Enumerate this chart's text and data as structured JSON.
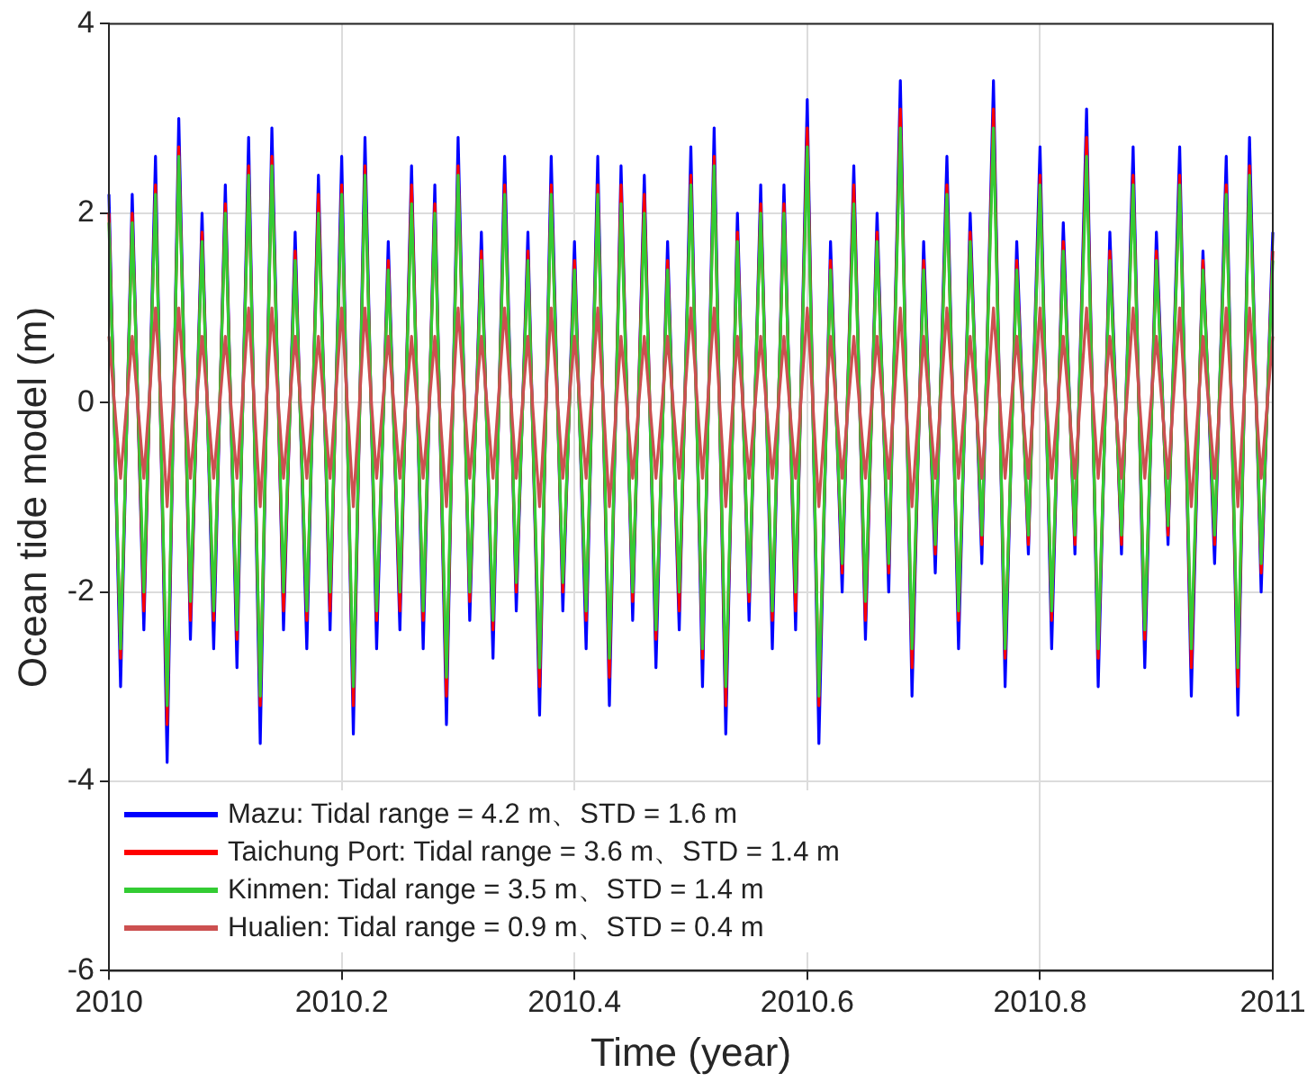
{
  "chart_data": {
    "type": "line",
    "xlabel": "Time (year)",
    "ylabel": "Ocean tide model (m)",
    "x": [
      2010.0,
      2010.01,
      2010.02,
      2010.03,
      2010.04,
      2010.05,
      2010.06,
      2010.07,
      2010.08,
      2010.09,
      2010.1,
      2010.11,
      2010.12,
      2010.13,
      2010.14,
      2010.15,
      2010.16,
      2010.17,
      2010.18,
      2010.19,
      2010.2,
      2010.21,
      2010.22,
      2010.23,
      2010.24,
      2010.25,
      2010.26,
      2010.27,
      2010.28,
      2010.29,
      2010.3,
      2010.31,
      2010.32,
      2010.33,
      2010.34,
      2010.35,
      2010.36,
      2010.37,
      2010.38,
      2010.39,
      2010.4,
      2010.41,
      2010.42,
      2010.43,
      2010.44,
      2010.45,
      2010.46,
      2010.47,
      2010.48,
      2010.49,
      2010.5,
      2010.51,
      2010.52,
      2010.53,
      2010.54,
      2010.55,
      2010.56,
      2010.57,
      2010.58,
      2010.59,
      2010.6,
      2010.61,
      2010.62,
      2010.63,
      2010.64,
      2010.65,
      2010.66,
      2010.67,
      2010.68,
      2010.69,
      2010.7,
      2010.71,
      2010.72,
      2010.73,
      2010.74,
      2010.75,
      2010.76,
      2010.77,
      2010.78,
      2010.79,
      2010.8,
      2010.81,
      2010.82,
      2010.83,
      2010.84,
      2010.85,
      2010.86,
      2010.87,
      2010.88,
      2010.89,
      2010.9,
      2010.91,
      2010.92,
      2010.93,
      2010.94,
      2010.95,
      2010.96,
      2010.97,
      2010.98,
      2010.99,
      2011.0
    ],
    "series": [
      {
        "name": "Mazu: Tidal range = 4.2 m、STD = 1.6 m",
        "color": "#0000ff",
        "values": [
          2.2,
          -3.0,
          2.2,
          -2.4,
          2.6,
          -3.8,
          3.0,
          -2.5,
          2.0,
          -2.6,
          2.3,
          -2.8,
          2.8,
          -3.6,
          2.9,
          -2.4,
          1.8,
          -2.6,
          2.4,
          -2.4,
          2.6,
          -3.5,
          2.8,
          -2.6,
          1.7,
          -2.4,
          2.5,
          -2.6,
          2.3,
          -3.4,
          2.8,
          -2.3,
          1.8,
          -2.7,
          2.6,
          -2.2,
          1.8,
          -3.3,
          2.6,
          -2.2,
          1.7,
          -2.6,
          2.6,
          -3.2,
          2.5,
          -2.3,
          2.4,
          -2.8,
          1.7,
          -2.4,
          2.7,
          -3.0,
          2.9,
          -3.5,
          2.0,
          -2.3,
          2.3,
          -2.6,
          2.3,
          -2.4,
          3.2,
          -3.6,
          1.7,
          -2.0,
          2.5,
          -2.5,
          2.0,
          -2.0,
          3.4,
          -3.1,
          1.7,
          -1.8,
          2.6,
          -2.6,
          2.0,
          -1.7,
          3.4,
          -3.0,
          1.7,
          -1.6,
          2.7,
          -2.6,
          1.9,
          -1.6,
          3.1,
          -3.0,
          1.8,
          -1.6,
          2.7,
          -2.8,
          1.8,
          -1.5,
          2.7,
          -3.1,
          1.6,
          -1.7,
          2.6,
          -3.3,
          2.8,
          -2.0,
          1.8
        ]
      },
      {
        "name": "Taichung Port: Tidal range = 3.6 m、STD = 1.4 m",
        "color": "#ff0000",
        "values": [
          2.0,
          -2.7,
          2.0,
          -2.2,
          2.3,
          -3.4,
          2.7,
          -2.3,
          1.8,
          -2.3,
          2.1,
          -2.5,
          2.5,
          -3.2,
          2.6,
          -2.2,
          1.6,
          -2.3,
          2.2,
          -2.2,
          2.3,
          -3.2,
          2.5,
          -2.3,
          1.5,
          -2.2,
          2.3,
          -2.3,
          2.1,
          -3.1,
          2.5,
          -2.1,
          1.6,
          -2.4,
          2.3,
          -2.0,
          1.6,
          -3.0,
          2.3,
          -2.0,
          1.5,
          -2.3,
          2.3,
          -2.9,
          2.3,
          -2.1,
          2.2,
          -2.5,
          1.5,
          -2.2,
          2.4,
          -2.7,
          2.6,
          -3.2,
          1.8,
          -2.1,
          2.1,
          -2.3,
          2.1,
          -2.2,
          2.9,
          -3.2,
          1.5,
          -1.8,
          2.3,
          -2.3,
          1.8,
          -1.8,
          3.1,
          -2.8,
          1.5,
          -1.6,
          2.3,
          -2.3,
          1.8,
          -1.5,
          3.1,
          -2.7,
          1.5,
          -1.5,
          2.4,
          -2.3,
          1.7,
          -1.5,
          2.8,
          -2.7,
          1.6,
          -1.5,
          2.4,
          -2.5,
          1.6,
          -1.4,
          2.4,
          -2.8,
          1.5,
          -1.5,
          2.3,
          -3.0,
          2.5,
          -1.8,
          1.6
        ]
      },
      {
        "name": "Kinmen: Tidal range = 3.5 m、STD = 1.4 m",
        "color": "#33cc33",
        "values": [
          1.9,
          -2.6,
          1.9,
          -2.0,
          2.2,
          -3.2,
          2.6,
          -2.1,
          1.7,
          -2.2,
          2.0,
          -2.4,
          2.4,
          -3.1,
          2.5,
          -2.0,
          1.5,
          -2.2,
          2.0,
          -2.0,
          2.2,
          -3.0,
          2.4,
          -2.2,
          1.4,
          -2.0,
          2.1,
          -2.2,
          2.0,
          -2.9,
          2.4,
          -2.0,
          1.5,
          -2.3,
          2.2,
          -1.9,
          1.5,
          -2.8,
          2.2,
          -1.9,
          1.4,
          -2.2,
          2.2,
          -2.7,
          2.1,
          -2.0,
          2.0,
          -2.4,
          1.4,
          -2.0,
          2.3,
          -2.6,
          2.5,
          -3.0,
          1.7,
          -2.0,
          2.0,
          -2.2,
          2.0,
          -2.0,
          2.7,
          -3.1,
          1.4,
          -1.7,
          2.1,
          -2.1,
          1.7,
          -1.7,
          2.9,
          -2.6,
          1.4,
          -1.5,
          2.2,
          -2.2,
          1.7,
          -1.4,
          2.9,
          -2.6,
          1.4,
          -1.4,
          2.3,
          -2.2,
          1.6,
          -1.4,
          2.6,
          -2.6,
          1.5,
          -1.4,
          2.3,
          -2.4,
          1.5,
          -1.3,
          2.3,
          -2.6,
          1.4,
          -1.4,
          2.2,
          -2.8,
          2.4,
          -1.7,
          1.5
        ]
      },
      {
        "name": "Hualien: Tidal range = 0.9 m、STD = 0.4 m",
        "color": "#cc5050",
        "values": [
          0.7,
          -0.8,
          0.7,
          -0.8,
          1.0,
          -1.1,
          1.0,
          -0.8,
          0.7,
          -0.8,
          0.7,
          -0.8,
          1.0,
          -1.1,
          1.0,
          -0.8,
          0.7,
          -0.8,
          0.7,
          -0.8,
          1.0,
          -1.1,
          1.0,
          -0.8,
          0.7,
          -0.8,
          0.7,
          -0.8,
          0.7,
          -1.1,
          1.0,
          -0.8,
          0.7,
          -0.8,
          1.0,
          -0.8,
          0.7,
          -1.1,
          1.0,
          -0.8,
          0.7,
          -0.8,
          1.0,
          -1.1,
          0.7,
          -0.8,
          0.7,
          -0.8,
          0.7,
          -0.8,
          1.0,
          -0.8,
          1.0,
          -1.1,
          0.7,
          -0.8,
          0.7,
          -0.8,
          0.7,
          -0.8,
          1.0,
          -1.1,
          0.7,
          -0.8,
          0.7,
          -0.8,
          0.7,
          -0.8,
          1.0,
          -1.1,
          0.7,
          -0.8,
          1.0,
          -0.8,
          0.7,
          -0.8,
          1.0,
          -0.8,
          0.7,
          -0.8,
          1.0,
          -0.8,
          0.7,
          -0.8,
          1.0,
          -0.8,
          0.7,
          -0.8,
          1.0,
          -0.8,
          0.7,
          -0.8,
          1.0,
          -1.1,
          0.7,
          -0.8,
          1.0,
          -1.1,
          1.0,
          -0.8,
          0.7
        ]
      }
    ],
    "xlim": [
      2010,
      2011
    ],
    "xticks": [
      2010,
      2010.2,
      2010.4,
      2010.6,
      2010.8,
      2011
    ],
    "ylim": [
      -6,
      4
    ],
    "yticks": [
      -6,
      -4,
      -2,
      0,
      2,
      4
    ],
    "grid": true,
    "legend": "bottom left",
    "marker": "none",
    "line_style": "solid"
  }
}
